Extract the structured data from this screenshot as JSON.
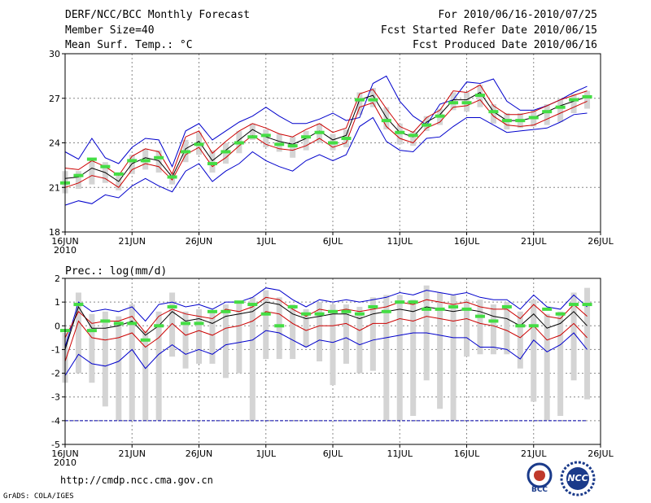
{
  "header": {
    "title": "DERF/NCC/BCC Monthly Forecast",
    "member": "Member Size=40",
    "variable": "Mean Surf. Temp.: °C",
    "period": "For 2010/06/16-2010/07/25",
    "refer": "Fcst Started Refer Date 2010/06/15",
    "produced": "Fcst Produced Date 2010/06/16"
  },
  "footer": {
    "url": "http://cmdp.ncc.cma.gov.cn",
    "credit": "GrADS: COLA/IGES",
    "logo_bcc": "BCC",
    "logo_ncc": "NCC"
  },
  "colors": {
    "envelope": "#0000cc",
    "spread": "#cc0000",
    "mean": "#000000",
    "box": "#d4d4d4",
    "climate": "#44dd44",
    "refline": "#0000aa"
  },
  "chart_data": [
    {
      "type": "line",
      "title": "Mean Surf. Temp.: °C",
      "year_label": "2010",
      "xlim": [
        1,
        40
      ],
      "ylim": [
        18,
        30
      ],
      "yticks": [
        18,
        21,
        24,
        27,
        30
      ],
      "xticks": [
        {
          "day": 1,
          "label": "16JUN"
        },
        {
          "day": 6,
          "label": "21JUN"
        },
        {
          "day": 11,
          "label": "26JUN"
        },
        {
          "day": 16,
          "label": "1JUL"
        },
        {
          "day": 21,
          "label": "6JUL"
        },
        {
          "day": 26,
          "label": "11JUL"
        },
        {
          "day": 31,
          "label": "16JUL"
        },
        {
          "day": 36,
          "label": "21JUL"
        },
        {
          "day": 41,
          "label": "26JUL"
        }
      ],
      "grid": true,
      "series": [
        {
          "name": "max",
          "values": [
            23.4,
            22.9,
            24.3,
            23.0,
            22.6,
            23.7,
            24.3,
            24.2,
            22.4,
            24.8,
            25.3,
            24.2,
            24.8,
            25.4,
            25.8,
            26.4,
            25.8,
            25.3,
            25.3,
            25.6,
            26.0,
            25.5,
            25.7,
            28.0,
            28.5,
            26.8,
            25.8,
            25.2,
            26.6,
            26.9,
            28.1,
            28.0,
            28.3,
            26.8,
            26.2,
            26.2,
            26.5,
            26.9,
            27.4,
            27.8
          ]
        },
        {
          "name": "upper",
          "values": [
            22.3,
            22.2,
            22.8,
            22.4,
            21.8,
            23.1,
            23.6,
            23.4,
            21.9,
            24.4,
            24.8,
            23.3,
            24.1,
            24.8,
            25.3,
            25.0,
            24.6,
            24.4,
            24.9,
            25.3,
            24.7,
            25.0,
            27.3,
            27.6,
            26.3,
            25.1,
            24.7,
            25.7,
            26.2,
            27.5,
            27.4,
            27.9,
            26.5,
            25.9,
            25.9,
            26.1,
            26.5,
            26.9,
            27.2,
            27.5
          ]
        },
        {
          "name": "mean",
          "values": [
            21.6,
            21.7,
            22.3,
            22.0,
            21.4,
            22.6,
            23.0,
            22.8,
            21.7,
            23.6,
            24.1,
            22.8,
            23.5,
            24.2,
            24.9,
            24.4,
            24.1,
            23.9,
            24.3,
            24.8,
            24.2,
            24.5,
            26.9,
            27.2,
            25.7,
            24.7,
            24.4,
            25.4,
            25.9,
            26.9,
            26.9,
            27.4,
            26.1,
            25.5,
            25.5,
            25.7,
            26.1,
            26.5,
            26.8,
            27.1
          ]
        },
        {
          "name": "lower",
          "values": [
            21.0,
            21.3,
            21.8,
            21.6,
            21.0,
            22.2,
            22.6,
            22.4,
            21.5,
            23.2,
            23.7,
            22.4,
            23.0,
            23.8,
            24.5,
            23.9,
            23.6,
            23.5,
            23.8,
            24.3,
            23.7,
            24.0,
            26.4,
            26.7,
            25.1,
            24.3,
            24.0,
            25.0,
            25.4,
            26.4,
            26.5,
            26.9,
            25.8,
            25.2,
            25.1,
            25.2,
            25.6,
            26.0,
            26.4,
            26.8
          ]
        },
        {
          "name": "min",
          "values": [
            19.8,
            20.1,
            19.9,
            20.5,
            20.3,
            21.1,
            21.6,
            21.1,
            20.7,
            22.1,
            22.6,
            21.4,
            22.1,
            22.6,
            23.4,
            22.8,
            22.4,
            22.1,
            22.8,
            23.2,
            22.8,
            23.2,
            25.1,
            25.7,
            24.1,
            23.5,
            23.4,
            24.3,
            24.4,
            25.1,
            25.7,
            25.7,
            25.2,
            24.7,
            24.8,
            24.9,
            25.0,
            25.4,
            25.9,
            26.0
          ]
        },
        {
          "name": "box_top",
          "values": [
            22.1,
            22.1,
            22.9,
            22.7,
            22.0,
            23.2,
            23.6,
            23.5,
            22.0,
            24.2,
            24.7,
            23.5,
            24.0,
            24.8,
            25.3,
            24.9,
            24.6,
            24.4,
            24.8,
            25.3,
            24.6,
            24.9,
            27.4,
            27.7,
            26.4,
            25.3,
            24.8,
            25.8,
            26.3,
            27.4,
            27.4,
            27.9,
            26.6,
            26.0,
            26.0,
            26.2,
            26.6,
            27.0,
            27.3,
            27.5
          ]
        },
        {
          "name": "box_bottom",
          "values": [
            20.6,
            20.9,
            21.2,
            21.3,
            20.8,
            21.9,
            22.2,
            22.0,
            21.2,
            22.7,
            23.2,
            22.0,
            22.6,
            23.3,
            24.2,
            23.7,
            23.4,
            23.0,
            23.5,
            24.0,
            23.5,
            23.7,
            25.9,
            26.4,
            24.9,
            23.9,
            23.8,
            24.8,
            25.2,
            26.2,
            26.1,
            26.4,
            25.3,
            24.9,
            25.0,
            25.1,
            25.2,
            25.4,
            26.0,
            26.3
          ]
        },
        {
          "name": "climate",
          "values": [
            21.3,
            21.8,
            22.9,
            22.4,
            21.9,
            22.8,
            22.8,
            23.0,
            21.7,
            23.4,
            23.9,
            22.6,
            23.4,
            24.0,
            24.4,
            24.5,
            23.9,
            23.8,
            24.4,
            24.7,
            24.0,
            24.3,
            26.9,
            26.9,
            25.5,
            24.7,
            24.5,
            25.2,
            25.8,
            26.7,
            26.7,
            27.2,
            26.1,
            25.5,
            25.5,
            25.7,
            26.1,
            26.4,
            26.9,
            27.1
          ]
        }
      ]
    },
    {
      "type": "line",
      "title": "Prec.: log(mm/d)",
      "year_label": "2010",
      "xlim": [
        1,
        40
      ],
      "ylim": [
        -5,
        2
      ],
      "yticks": [
        -5,
        -4,
        -3,
        -2,
        -1,
        0,
        1,
        2
      ],
      "xticks": [
        {
          "day": 1,
          "label": "16JUN"
        },
        {
          "day": 6,
          "label": "21JUN"
        },
        {
          "day": 11,
          "label": "26JUN"
        },
        {
          "day": 16,
          "label": "1JUL"
        },
        {
          "day": 21,
          "label": "6JUL"
        },
        {
          "day": 26,
          "label": "11JUL"
        },
        {
          "day": 31,
          "label": "16JUL"
        },
        {
          "day": 36,
          "label": "21JUL"
        },
        {
          "day": 41,
          "label": "26JUL"
        }
      ],
      "grid": true,
      "reference_line": -4,
      "series": [
        {
          "name": "max",
          "values": [
            -0.9,
            1.0,
            0.6,
            0.7,
            0.6,
            0.8,
            0.2,
            0.9,
            1.0,
            0.8,
            0.9,
            0.7,
            1.0,
            1.0,
            1.2,
            1.6,
            1.5,
            1.1,
            0.8,
            1.1,
            1.0,
            1.1,
            1.0,
            1.1,
            1.2,
            1.4,
            1.3,
            1.5,
            1.4,
            1.3,
            1.4,
            1.2,
            1.1,
            1.1,
            0.7,
            1.3,
            0.8,
            0.7,
            1.3,
            0.8
          ]
        },
        {
          "name": "upper",
          "values": [
            -0.5,
            0.6,
            0.1,
            0.2,
            0.2,
            0.4,
            -0.3,
            0.4,
            0.7,
            0.5,
            0.4,
            0.3,
            0.7,
            0.6,
            0.8,
            1.2,
            1.1,
            0.7,
            0.4,
            0.7,
            0.6,
            0.7,
            0.6,
            0.7,
            0.8,
            1.0,
            0.9,
            1.1,
            1.0,
            0.9,
            1.0,
            0.8,
            0.7,
            0.7,
            0.3,
            0.9,
            0.4,
            0.3,
            0.9,
            0.4
          ]
        },
        {
          "name": "mean",
          "values": [
            -1.0,
            0.8,
            -0.1,
            -0.1,
            0.0,
            0.2,
            -0.4,
            0.0,
            0.6,
            0.2,
            0.3,
            0.1,
            0.4,
            0.5,
            0.6,
            1.0,
            0.9,
            0.5,
            0.3,
            0.4,
            0.5,
            0.5,
            0.3,
            0.5,
            0.6,
            0.7,
            0.6,
            0.8,
            0.7,
            0.6,
            0.7,
            0.6,
            0.4,
            0.3,
            0.0,
            0.5,
            -0.1,
            0.1,
            0.6,
            0.0
          ]
        },
        {
          "name": "lower",
          "values": [
            -1.5,
            0.2,
            -0.5,
            -0.6,
            -0.5,
            -0.3,
            -0.9,
            -0.5,
            0.1,
            -0.4,
            -0.2,
            -0.4,
            -0.1,
            0.0,
            0.2,
            0.6,
            0.5,
            0.1,
            -0.2,
            0.0,
            0.0,
            0.1,
            -0.2,
            0.1,
            0.1,
            0.3,
            0.2,
            0.4,
            0.3,
            0.2,
            0.3,
            0.1,
            0.0,
            -0.2,
            -0.5,
            0.0,
            -0.6,
            -0.4,
            0.1,
            -0.5
          ]
        },
        {
          "name": "min",
          "values": [
            -2.1,
            -1.2,
            -1.6,
            -1.7,
            -1.5,
            -1.0,
            -1.8,
            -1.2,
            -0.8,
            -1.2,
            -1.0,
            -1.2,
            -0.8,
            -0.7,
            -0.6,
            -0.2,
            -0.3,
            -0.6,
            -0.9,
            -0.6,
            -0.7,
            -0.5,
            -0.8,
            -0.6,
            -0.5,
            -0.4,
            -0.3,
            -0.3,
            -0.4,
            -0.5,
            -0.5,
            -0.9,
            -0.9,
            -1.0,
            -1.4,
            -0.6,
            -1.1,
            -0.8,
            -0.3,
            -1.0
          ]
        },
        {
          "name": "box_top",
          "values": [
            -0.3,
            1.4,
            0.5,
            0.6,
            0.4,
            0.9,
            -0.2,
            0.6,
            1.4,
            0.6,
            0.7,
            0.6,
            0.9,
            1.0,
            1.2,
            1.5,
            1.2,
            0.9,
            0.7,
            1.0,
            0.9,
            0.9,
            0.8,
            1.2,
            1.3,
            1.3,
            1.1,
            1.7,
            1.4,
            1.3,
            1.1,
            1.1,
            0.9,
            1.0,
            0.6,
            1.1,
            0.5,
            0.6,
            1.4,
            1.6
          ]
        },
        {
          "name": "box_bottom",
          "values": [
            -2.4,
            -2.0,
            -2.4,
            -3.4,
            -4.0,
            -4.0,
            -4.0,
            -4.0,
            -1.3,
            -1.8,
            -1.6,
            -1.6,
            -2.2,
            -2.0,
            -4.0,
            -1.4,
            -1.4,
            -1.4,
            -0.9,
            -1.5,
            -2.5,
            -1.6,
            -2.0,
            -1.9,
            -4.0,
            -4.0,
            -3.8,
            -2.3,
            -3.5,
            -4.0,
            -1.3,
            -1.2,
            -1.2,
            -1.2,
            -1.8,
            -3.2,
            -4.0,
            -3.8,
            -2.3,
            -3.1
          ]
        },
        {
          "name": "climate",
          "values": [
            -0.2,
            0.9,
            -0.2,
            0.2,
            0.1,
            0.1,
            -0.6,
            0.0,
            0.8,
            0.1,
            0.1,
            0.6,
            0.6,
            1.0,
            0.9,
            0.5,
            0.0,
            0.8,
            0.5,
            0.5,
            0.6,
            0.6,
            0.5,
            0.8,
            0.6,
            1.0,
            1.0,
            0.7,
            0.7,
            0.8,
            0.7,
            0.4,
            0.2,
            0.8,
            0.0,
            0.0,
            0.7,
            0.5,
            0.9,
            0.9
          ]
        }
      ]
    }
  ]
}
